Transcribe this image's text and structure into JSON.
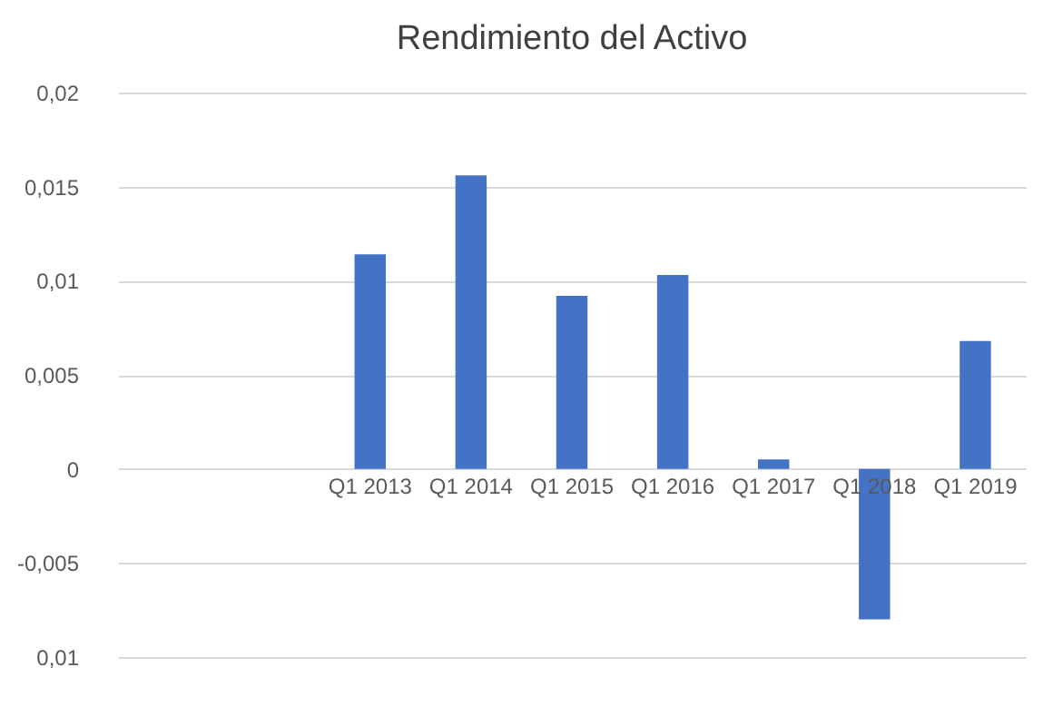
{
  "chart_data": {
    "type": "bar",
    "title": "Rendimiento del Activo",
    "categories": [
      null,
      null,
      "Q1 2013",
      "Q1 2014",
      "Q1 2015",
      "Q1 2016",
      "Q1 2017",
      "Q1 2018",
      "Q1 2019"
    ],
    "values": [
      null,
      null,
      0.0114,
      0.0156,
      0.0092,
      0.0103,
      0.0005,
      -0.008,
      0.0068
    ],
    "color": "#4472c4",
    "ylim": [
      -0.01,
      0.02
    ],
    "yticks": [
      {
        "value": -0.01,
        "label": "0,01"
      },
      {
        "value": -0.005,
        "label": "-0,005"
      },
      {
        "value": 0,
        "label": "0"
      },
      {
        "value": 0.005,
        "label": "0,005"
      },
      {
        "value": 0.01,
        "label": "0,01"
      },
      {
        "value": 0.015,
        "label": "0,015"
      },
      {
        "value": 0.02,
        "label": "0,02"
      }
    ],
    "grid": "y"
  }
}
